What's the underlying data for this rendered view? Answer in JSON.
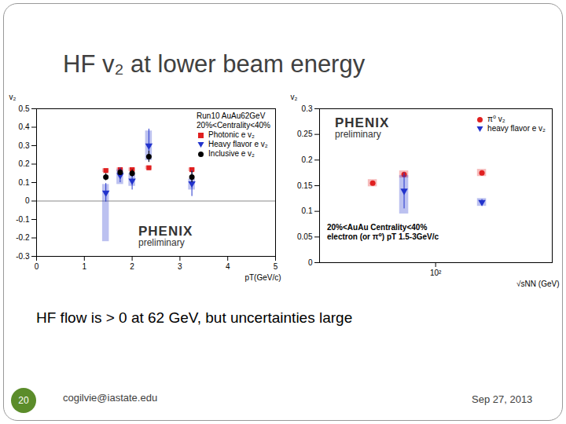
{
  "slide": {
    "title": "HF v₂ at lower beam energy",
    "caption": "HF flow is > 0 at 62 GeV, but uncertainties large",
    "footer": {
      "page": "20",
      "email": "cogilvie@iastate.edu",
      "date": "Sep 27, 2013"
    }
  },
  "chart_data": [
    {
      "type": "scatter",
      "x_label": "pT(GeV/c)",
      "y_label": "v₂",
      "annotations": [
        "Run10 AuAu62GeV",
        "20%<Centrality<40%"
      ],
      "logo": [
        "PHENIX",
        "preliminary"
      ],
      "legend": "top-right",
      "xlim": [
        0,
        5
      ],
      "xticks": [
        0,
        1,
        2,
        3,
        4,
        5
      ],
      "ylim": [
        -0.3,
        0.5
      ],
      "yticks": [
        -0.3,
        -0.2,
        -0.1,
        0,
        0.1,
        0.2,
        0.3,
        0.4,
        0.5
      ],
      "hline": 0,
      "series": [
        {
          "name": "Photonic e v₂",
          "color": "#e02020",
          "marker": "square",
          "x": [
            1.45,
            1.75,
            2.0,
            2.35,
            3.25
          ],
          "values": [
            0.165,
            0.17,
            0.17,
            0.18,
            0.17
          ],
          "errors": [
            0.005,
            0.005,
            0.005,
            0.005,
            0.005
          ],
          "sys_low": [
            0.155,
            0.16,
            0.16,
            0.17,
            0.16
          ],
          "sys_high": [
            0.175,
            0.18,
            0.18,
            0.19,
            0.18
          ]
        },
        {
          "name": "Heavy flavor e v₂",
          "color": "#2233cc",
          "marker": "triangle-down",
          "x": [
            1.45,
            1.75,
            2.0,
            2.35,
            3.25
          ],
          "values": [
            0.045,
            0.14,
            0.11,
            0.3,
            0.095
          ],
          "errors": [
            0.05,
            0.04,
            0.05,
            0.09,
            0.07
          ],
          "sys_low": [
            -0.22,
            0.09,
            0.08,
            0.22,
            0.06
          ],
          "sys_high": [
            0.09,
            0.17,
            0.15,
            0.38,
            0.12
          ]
        },
        {
          "name": "Inclusive e v₂",
          "color": "#000000",
          "marker": "circle",
          "x": [
            1.45,
            1.75,
            2.0,
            2.35,
            3.25
          ],
          "values": [
            0.13,
            0.155,
            0.15,
            0.24,
            0.13
          ],
          "errors": [
            0.02,
            0.015,
            0.02,
            0.03,
            0.03
          ]
        }
      ]
    },
    {
      "type": "scatter",
      "log": "x",
      "x_label": "√sNN (GeV)",
      "y_label": "v₂",
      "annotations": [
        "20%<AuAu Centrality<40%",
        "electron (or π⁰) pT 1.5-3GeV/c"
      ],
      "logo": [
        "PHENIX",
        "preliminary"
      ],
      "legend": "top-right",
      "xlim": [
        17.6,
        573
      ],
      "xticks": [
        {
          "value": 100,
          "label": "10²"
        }
      ],
      "ylim": [
        0,
        0.3
      ],
      "yticks": [
        0,
        0.05,
        0.1,
        0.15,
        0.2,
        0.25,
        0.3
      ],
      "series": [
        {
          "name": "π⁰ v₂",
          "color": "#e02020",
          "marker": "circle",
          "x": [
            39,
            62.4,
            200
          ],
          "values": [
            0.155,
            0.172,
            0.175
          ],
          "sys_low": [
            0.148,
            0.165,
            0.168
          ],
          "sys_high": [
            0.162,
            0.179,
            0.182
          ]
        },
        {
          "name": "heavy flavor e v₂",
          "color": "#2233cc",
          "marker": "triangle-down",
          "x": [
            62.4,
            200
          ],
          "values": [
            0.14,
            0.118
          ],
          "errors": [
            0.035,
            0.005
          ],
          "sys_low": [
            0.095,
            0.11
          ],
          "sys_high": [
            0.17,
            0.125
          ]
        }
      ]
    }
  ]
}
